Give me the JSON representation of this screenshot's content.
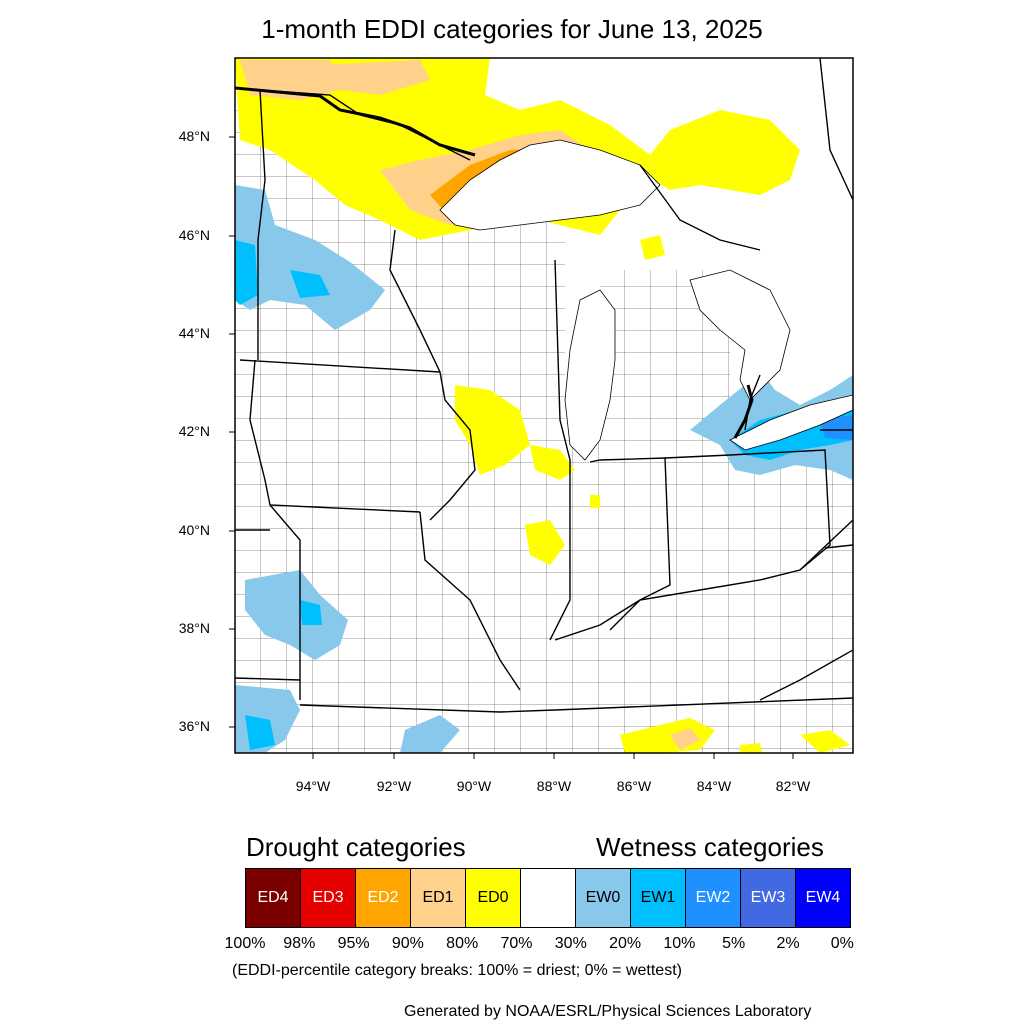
{
  "title": "1-month EDDI categories for June 13, 2025",
  "map": {
    "lat_labels": [
      "48°N",
      "46°N",
      "44°N",
      "42°N",
      "40°N",
      "38°N",
      "36°N"
    ],
    "lon_labels": [
      "94°W",
      "92°W",
      "90°W",
      "88°W",
      "86°W",
      "84°W",
      "82°W"
    ],
    "colors": {
      "background": "#ffffff",
      "border": "#000000",
      "ED2": "#FFA500",
      "ED1": "#FFD18A",
      "ED0": "#FFFF00",
      "EW0": "#87C8EB",
      "EW1": "#00BFFF"
    }
  },
  "legend": {
    "drought_heading": "Drought categories",
    "wetness_heading": "Wetness categories",
    "categories": [
      {
        "label": "ED4",
        "color": "#7A0000",
        "text_color": "#ffffff"
      },
      {
        "label": "ED3",
        "color": "#E60000",
        "text_color": "#ffffff"
      },
      {
        "label": "ED2",
        "color": "#FFA500",
        "text_color": "#ffffff"
      },
      {
        "label": "ED1",
        "color": "#FFD18A",
        "text_color": "#000000"
      },
      {
        "label": "ED0",
        "color": "#FFFF00",
        "text_color": "#000000"
      },
      {
        "label": "",
        "color": "#FFFFFF",
        "text_color": "#000000"
      },
      {
        "label": "EW0",
        "color": "#87C8EB",
        "text_color": "#000000"
      },
      {
        "label": "EW1",
        "color": "#00BFFF",
        "text_color": "#000000"
      },
      {
        "label": "EW2",
        "color": "#1E90FF",
        "text_color": "#ffffff"
      },
      {
        "label": "EW3",
        "color": "#4169E1",
        "text_color": "#ffffff"
      },
      {
        "label": "EW4",
        "color": "#0000FF",
        "text_color": "#ffffff"
      }
    ],
    "percentiles": [
      "100%",
      "98%",
      "95%",
      "90%",
      "80%",
      "70%",
      "30%",
      "20%",
      "10%",
      "5%",
      "2%",
      "0%"
    ],
    "note": "(EDDI-percentile category breaks: 100% = driest; 0% = wettest)"
  },
  "credit": "Generated by NOAA/ESRL/Physical Sciences Laboratory"
}
